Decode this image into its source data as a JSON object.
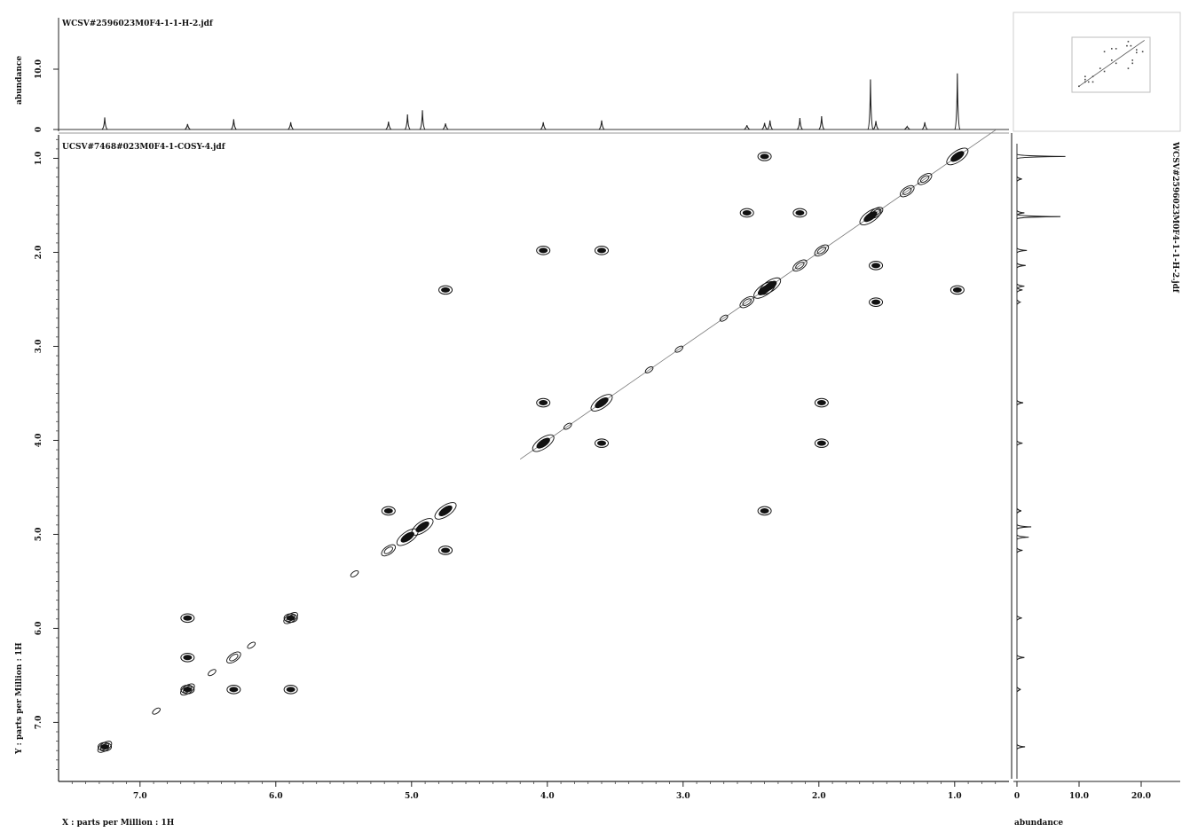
{
  "chart_data": {
    "type": "scatter",
    "top_spectrum_file": "WCSV#2596023M0F4-1-1-H-2.jdf",
    "cosy_file": "UCSV#7468#023M0F4-1-COSY-4.jdf",
    "right_spectrum_file": "WCSV#2596023M0F4-1-1-H-2.jdf",
    "x_axis": {
      "label": "X : parts per Million : 1H",
      "range": [
        7.6,
        0.6
      ],
      "ticks": [
        7.0,
        6.0,
        5.0,
        4.0,
        3.0,
        2.0,
        1.0
      ],
      "tick_labels": [
        "7.0",
        "6.0",
        "5.0",
        "4.0",
        "3.0",
        "2.0",
        "1.0"
      ]
    },
    "y_axis": {
      "label": "Y : parts per Million : 1H",
      "range": [
        0.75,
        7.6
      ],
      "ticks": [
        1.0,
        2.0,
        3.0,
        4.0,
        5.0,
        6.0,
        7.0
      ],
      "tick_labels": [
        "1.0",
        "2.0",
        "3.0",
        "4.0",
        "5.0",
        "6.0",
        "7.0"
      ]
    },
    "top_axis": {
      "label": "abundance",
      "ticks": [
        0,
        10.0
      ],
      "tick_labels": [
        "0",
        "10.0"
      ]
    },
    "right_axis": {
      "label": "abundance",
      "ticks": [
        0,
        10.0,
        20.0
      ],
      "tick_labels": [
        "0",
        "10.0",
        "20.0"
      ]
    },
    "top_peaks": [
      {
        "ppm": 7.26,
        "h": 2.0
      },
      {
        "ppm": 6.65,
        "h": 0.9
      },
      {
        "ppm": 6.31,
        "h": 1.7
      },
      {
        "ppm": 5.89,
        "h": 1.2
      },
      {
        "ppm": 5.17,
        "h": 1.3
      },
      {
        "ppm": 5.03,
        "h": 2.5
      },
      {
        "ppm": 4.92,
        "h": 3.2
      },
      {
        "ppm": 4.75,
        "h": 1.0
      },
      {
        "ppm": 4.03,
        "h": 1.2
      },
      {
        "ppm": 3.6,
        "h": 1.5
      },
      {
        "ppm": 2.53,
        "h": 0.7
      },
      {
        "ppm": 2.4,
        "h": 1.1
      },
      {
        "ppm": 2.36,
        "h": 1.5
      },
      {
        "ppm": 2.14,
        "h": 1.9
      },
      {
        "ppm": 1.98,
        "h": 2.2
      },
      {
        "ppm": 1.62,
        "h": 8.3
      },
      {
        "ppm": 1.58,
        "h": 1.4
      },
      {
        "ppm": 1.35,
        "h": 0.5
      },
      {
        "ppm": 1.22,
        "h": 1.2
      },
      {
        "ppm": 0.98,
        "h": 9.3
      }
    ],
    "right_peaks": [
      {
        "ppm": 0.98,
        "h": 7.8
      },
      {
        "ppm": 1.22,
        "h": 0.8
      },
      {
        "ppm": 1.58,
        "h": 1.2
      },
      {
        "ppm": 1.62,
        "h": 7.0
      },
      {
        "ppm": 1.98,
        "h": 1.6
      },
      {
        "ppm": 2.14,
        "h": 1.4
      },
      {
        "ppm": 2.36,
        "h": 1.2
      },
      {
        "ppm": 2.4,
        "h": 0.9
      },
      {
        "ppm": 2.53,
        "h": 0.5
      },
      {
        "ppm": 3.6,
        "h": 1.0
      },
      {
        "ppm": 4.03,
        "h": 0.9
      },
      {
        "ppm": 4.75,
        "h": 0.7
      },
      {
        "ppm": 4.92,
        "h": 2.3
      },
      {
        "ppm": 5.03,
        "h": 1.9
      },
      {
        "ppm": 5.17,
        "h": 0.9
      },
      {
        "ppm": 5.89,
        "h": 0.8
      },
      {
        "ppm": 6.31,
        "h": 1.2
      },
      {
        "ppm": 6.65,
        "h": 0.6
      },
      {
        "ppm": 7.26,
        "h": 1.3
      }
    ],
    "diagonal_peaks": [
      {
        "ppm": 0.98,
        "s": 3
      },
      {
        "ppm": 1.22,
        "s": 2
      },
      {
        "ppm": 1.35,
        "s": 2
      },
      {
        "ppm": 1.58,
        "s": 2
      },
      {
        "ppm": 1.62,
        "s": 3
      },
      {
        "ppm": 1.98,
        "s": 2
      },
      {
        "ppm": 2.14,
        "s": 2
      },
      {
        "ppm": 2.36,
        "s": 3
      },
      {
        "ppm": 2.4,
        "s": 3
      },
      {
        "ppm": 2.53,
        "s": 2
      },
      {
        "ppm": 2.7,
        "s": 1
      },
      {
        "ppm": 3.03,
        "s": 1
      },
      {
        "ppm": 3.25,
        "s": 1
      },
      {
        "ppm": 3.6,
        "s": 3
      },
      {
        "ppm": 3.85,
        "s": 1
      },
      {
        "ppm": 4.03,
        "s": 3
      },
      {
        "ppm": 4.75,
        "s": 3
      },
      {
        "ppm": 4.92,
        "s": 3
      },
      {
        "ppm": 5.03,
        "s": 3
      },
      {
        "ppm": 5.17,
        "s": 2
      },
      {
        "ppm": 5.42,
        "s": 1
      },
      {
        "ppm": 5.89,
        "s": 2
      },
      {
        "ppm": 6.18,
        "s": 1
      },
      {
        "ppm": 6.31,
        "s": 2
      },
      {
        "ppm": 6.47,
        "s": 1
      },
      {
        "ppm": 6.65,
        "s": 2
      },
      {
        "ppm": 6.88,
        "s": 1
      },
      {
        "ppm": 7.26,
        "s": 2
      }
    ],
    "cross_peaks": [
      {
        "x": 2.4,
        "y": 0.98
      },
      {
        "x": 2.53,
        "y": 1.58
      },
      {
        "x": 2.14,
        "y": 1.58
      },
      {
        "x": 4.03,
        "y": 1.98
      },
      {
        "x": 3.6,
        "y": 1.98
      },
      {
        "x": 4.75,
        "y": 2.4
      },
      {
        "x": 0.98,
        "y": 2.4
      },
      {
        "x": 1.58,
        "y": 2.14
      },
      {
        "x": 1.58,
        "y": 2.53
      },
      {
        "x": 4.03,
        "y": 3.6
      },
      {
        "x": 1.98,
        "y": 3.6
      },
      {
        "x": 3.6,
        "y": 4.03
      },
      {
        "x": 1.98,
        "y": 4.03
      },
      {
        "x": 5.17,
        "y": 4.75
      },
      {
        "x": 2.4,
        "y": 4.75
      },
      {
        "x": 4.75,
        "y": 5.17
      },
      {
        "x": 6.65,
        "y": 5.89
      },
      {
        "x": 5.89,
        "y": 5.89
      },
      {
        "x": 6.65,
        "y": 6.31
      },
      {
        "x": 6.65,
        "y": 6.65
      },
      {
        "x": 6.31,
        "y": 6.65
      },
      {
        "x": 5.89,
        "y": 6.65
      },
      {
        "x": 7.26,
        "y": 7.26
      }
    ]
  }
}
